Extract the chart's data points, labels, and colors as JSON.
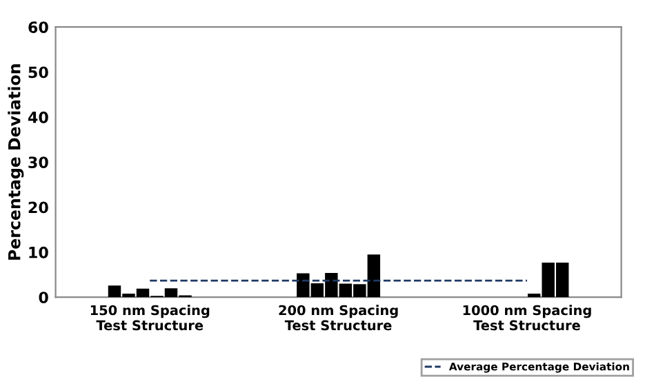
{
  "chart_data": {
    "type": "bar",
    "ylabel": "Percentage Deviation",
    "categories": [
      "150 nm Spacing\nTest Structure",
      "200 nm Spacing\nTest Structure",
      "1000 nm Spacing\nTest Structure"
    ],
    "series": [
      {
        "color": "#000000",
        "values": [
          2.6,
          5.3,
          null
        ]
      },
      {
        "color": "#000000",
        "values": [
          0.8,
          3.1,
          null
        ]
      },
      {
        "color": "#000000",
        "values": [
          1.9,
          5.4,
          null
        ]
      },
      {
        "color": "#000000",
        "values": [
          0.3,
          3.0,
          0.8
        ]
      },
      {
        "color": "#000000",
        "values": [
          2.0,
          2.9,
          7.7
        ]
      },
      {
        "color": "#000000",
        "values": [
          0.4,
          9.5,
          7.7
        ]
      },
      {
        "type": "line",
        "name": "Average Percentage Deviation",
        "color": "#1f3864",
        "line_style": "dashed",
        "marker": "none",
        "values": [
          3.7,
          3.7,
          3.7
        ]
      }
    ],
    "ylim": [
      0,
      60
    ],
    "yticks": [
      0,
      10,
      20,
      30,
      40,
      50,
      60
    ],
    "grid": false,
    "legend": "bottom right"
  }
}
